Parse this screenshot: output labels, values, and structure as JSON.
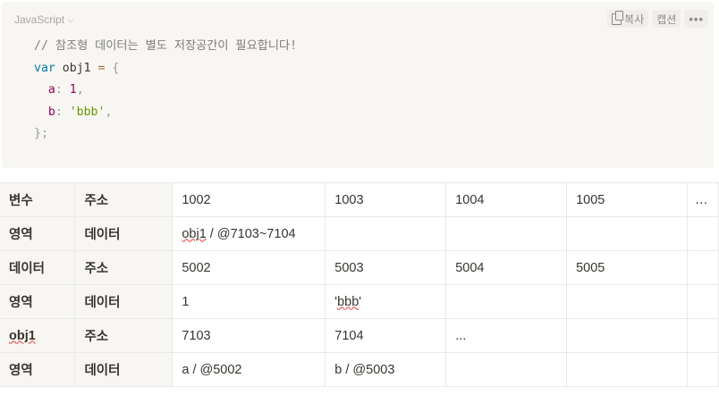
{
  "code_block": {
    "language": "JavaScript",
    "copy_label": "복사",
    "caption_label": "캡션",
    "more_label": "•••",
    "lines": {
      "comment": "// 참조형 데이터는 별도 저장공간이 필요합니다!",
      "kw_var": "var",
      "ident_obj1": " obj1 ",
      "op_eq": "=",
      "brace_open": " {",
      "prop_a": "a",
      "colon_a": ":",
      "val_a": " 1",
      "comma_a": ",",
      "prop_b": "b",
      "colon_b": ":",
      "val_b": " 'bbb'",
      "comma_b": ",",
      "brace_close": "};"
    }
  },
  "table": {
    "rows": [
      [
        "변수",
        "주소",
        "1002",
        "1003",
        "1004",
        "1005",
        "…"
      ],
      [
        "영역",
        "데이터",
        "obj1 / @7103~7104",
        "",
        "",
        "",
        ""
      ],
      [
        "데이터",
        "주소",
        "5002",
        "5003",
        "5004",
        "5005",
        ""
      ],
      [
        "영역",
        "데이터",
        "1",
        "'bbb'",
        "",
        "",
        ""
      ],
      [
        "obj1",
        "주소",
        "7103",
        "7104",
        "...",
        "",
        ""
      ],
      [
        "영역",
        "데이터",
        "a / @5002",
        "b / @5003",
        "",
        "",
        ""
      ]
    ],
    "squiggle_words": {
      "obj1_in_cell": "obj1",
      "obj1_rest": " / @7103~7104",
      "bbb_quote1": "'",
      "bbb_word": "bbb",
      "bbb_quote2": "'"
    }
  },
  "colors": {
    "code_bg": "#f7f6f3",
    "header_bg": "#f7f6f3",
    "border": "#e9e9e7",
    "text": "#37352f"
  }
}
